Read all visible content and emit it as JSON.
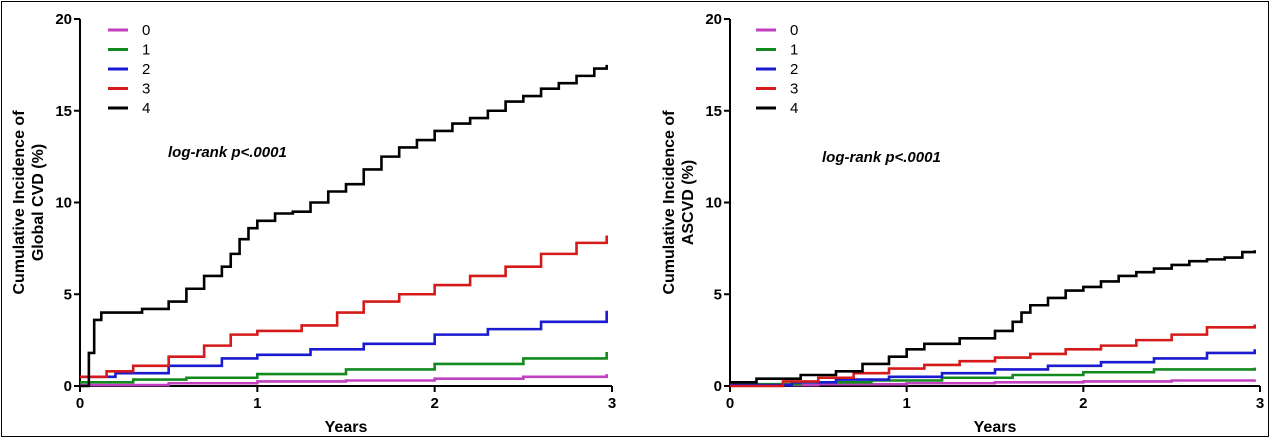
{
  "chart_data": [
    {
      "type": "line",
      "step": true,
      "xlabel": "Years",
      "ylabel": [
        "Cumulative Incidence of",
        "Global CVD (%)"
      ],
      "annotation": "log-rank p<.0001",
      "xlim": [
        0,
        3
      ],
      "ylim": [
        0,
        20
      ],
      "xticks": [
        0,
        1,
        2,
        3
      ],
      "yticks": [
        0,
        5,
        10,
        15,
        20
      ],
      "grid": false,
      "legend_position": "top-left",
      "series": [
        {
          "name": "0",
          "color": "#c040c0",
          "x": [
            0,
            0.5,
            1,
            1.5,
            2,
            2.5,
            2.97
          ],
          "y": [
            0.05,
            0.15,
            0.25,
            0.3,
            0.4,
            0.5,
            0.65
          ]
        },
        {
          "name": "1",
          "color": "#138a1e",
          "x": [
            0,
            0.3,
            0.6,
            1,
            1.5,
            2,
            2.5,
            2.97
          ],
          "y": [
            0.2,
            0.35,
            0.45,
            0.65,
            0.9,
            1.2,
            1.5,
            1.85
          ]
        },
        {
          "name": "2",
          "color": "#1a1ad0",
          "x": [
            0,
            0.2,
            0.5,
            0.8,
            1,
            1.3,
            1.6,
            2,
            2.3,
            2.6,
            2.97
          ],
          "y": [
            0.5,
            0.7,
            1.1,
            1.5,
            1.7,
            2.0,
            2.3,
            2.8,
            3.1,
            3.5,
            4.1
          ]
        },
        {
          "name": "3",
          "color": "#d41a1a",
          "x": [
            0,
            0.15,
            0.3,
            0.5,
            0.7,
            0.85,
            1,
            1.25,
            1.45,
            1.6,
            1.8,
            2.0,
            2.2,
            2.4,
            2.6,
            2.8,
            2.97
          ],
          "y": [
            0.5,
            0.8,
            1.1,
            1.6,
            2.2,
            2.8,
            3.0,
            3.3,
            4.0,
            4.6,
            5.0,
            5.5,
            6.0,
            6.5,
            7.2,
            7.8,
            8.2
          ]
        },
        {
          "name": "4",
          "color": "#000000",
          "x": [
            0,
            0.05,
            0.08,
            0.12,
            0.2,
            0.35,
            0.5,
            0.6,
            0.7,
            0.8,
            0.85,
            0.9,
            0.95,
            1.0,
            1.1,
            1.2,
            1.3,
            1.4,
            1.5,
            1.6,
            1.7,
            1.8,
            1.9,
            2.0,
            2.1,
            2.2,
            2.3,
            2.4,
            2.5,
            2.6,
            2.7,
            2.8,
            2.9,
            2.97
          ],
          "y": [
            0,
            1.8,
            3.6,
            4.0,
            4.0,
            4.2,
            4.6,
            5.3,
            6.0,
            6.5,
            7.2,
            8.0,
            8.6,
            9.0,
            9.4,
            9.5,
            10.0,
            10.6,
            11.0,
            11.8,
            12.5,
            13.0,
            13.4,
            13.9,
            14.3,
            14.6,
            15.0,
            15.5,
            15.8,
            16.2,
            16.5,
            16.9,
            17.3,
            17.5
          ]
        }
      ]
    },
    {
      "type": "line",
      "step": true,
      "xlabel": "Years",
      "ylabel": [
        "Cumulative Incidence of",
        "ASCVD (%)"
      ],
      "annotation": "log-rank p<.0001",
      "xlim": [
        0,
        3
      ],
      "ylim": [
        0,
        20
      ],
      "xticks": [
        0,
        1,
        2,
        3
      ],
      "yticks": [
        0,
        5,
        10,
        15,
        20
      ],
      "grid": false,
      "legend_position": "top-left",
      "series": [
        {
          "name": "0",
          "color": "#c040c0",
          "x": [
            0,
            0.5,
            1,
            1.5,
            2,
            2.5,
            2.97
          ],
          "y": [
            0.05,
            0.1,
            0.15,
            0.2,
            0.25,
            0.3,
            0.35
          ]
        },
        {
          "name": "1",
          "color": "#138a1e",
          "x": [
            0,
            0.4,
            0.8,
            1.2,
            1.6,
            2,
            2.4,
            2.97
          ],
          "y": [
            0.1,
            0.2,
            0.3,
            0.45,
            0.6,
            0.75,
            0.9,
            1.0
          ]
        },
        {
          "name": "2",
          "color": "#1a1ad0",
          "x": [
            0,
            0.35,
            0.6,
            0.9,
            1.2,
            1.5,
            1.8,
            2.1,
            2.4,
            2.7,
            2.97
          ],
          "y": [
            0.05,
            0.2,
            0.35,
            0.5,
            0.7,
            0.9,
            1.1,
            1.3,
            1.5,
            1.8,
            2.0
          ]
        },
        {
          "name": "3",
          "color": "#d41a1a",
          "x": [
            0,
            0.3,
            0.5,
            0.7,
            0.9,
            1.1,
            1.3,
            1.5,
            1.7,
            1.9,
            2.1,
            2.3,
            2.5,
            2.7,
            2.97
          ],
          "y": [
            0,
            0.25,
            0.45,
            0.7,
            0.95,
            1.15,
            1.35,
            1.55,
            1.75,
            2.0,
            2.2,
            2.5,
            2.8,
            3.2,
            3.35
          ]
        },
        {
          "name": "4",
          "color": "#000000",
          "x": [
            0,
            0.15,
            0.4,
            0.6,
            0.75,
            0.9,
            1.0,
            1.1,
            1.3,
            1.5,
            1.6,
            1.65,
            1.7,
            1.8,
            1.9,
            2.0,
            2.1,
            2.2,
            2.3,
            2.4,
            2.5,
            2.6,
            2.7,
            2.8,
            2.9,
            2.97
          ],
          "y": [
            0.2,
            0.4,
            0.6,
            0.8,
            1.2,
            1.6,
            2.0,
            2.3,
            2.6,
            3.0,
            3.5,
            4.0,
            4.4,
            4.8,
            5.2,
            5.4,
            5.7,
            6.0,
            6.2,
            6.4,
            6.6,
            6.8,
            6.9,
            7.0,
            7.3,
            7.4
          ]
        }
      ]
    }
  ]
}
